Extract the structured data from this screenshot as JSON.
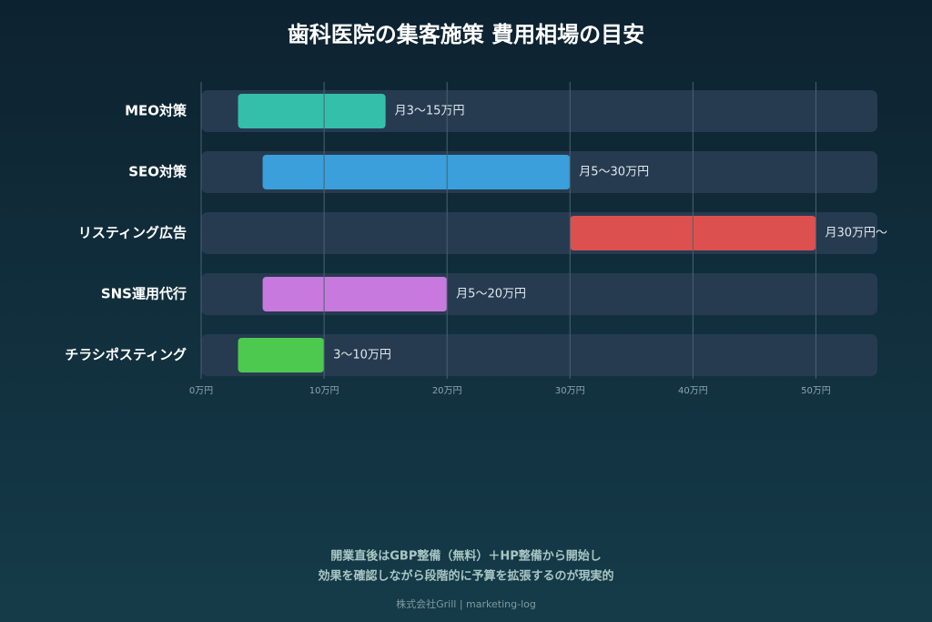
{
  "chart_data": {
    "type": "range-bar",
    "title": "歯科医院の集客施策 費用相場の目安",
    "categories": [
      "MEO対策",
      "SEO対策",
      "リスティング広告",
      "SNS運用代行",
      "チラシポスティング"
    ],
    "starts": [
      3,
      5,
      30,
      5,
      3
    ],
    "ends": [
      15,
      30,
      50,
      20,
      10
    ],
    "value_labels": [
      "月3〜15万円",
      "月5〜30万円",
      "月30万円〜",
      "月5〜20万円",
      "3〜10万円"
    ],
    "colors": [
      "#34bfaa",
      "#3b9fdc",
      "#dd5050",
      "#c879de",
      "#4ec94f"
    ],
    "xlim": [
      0,
      55
    ],
    "xticks": [
      {
        "value": 0,
        "label": "0万円"
      },
      {
        "value": 10,
        "label": "10万円"
      },
      {
        "value": 20,
        "label": "20万円"
      },
      {
        "value": 30,
        "label": "30万円"
      },
      {
        "value": 40,
        "label": "40万円"
      },
      {
        "value": 50,
        "label": "50万円"
      }
    ],
    "grid": true,
    "notes": [
      "開業直後はGBP整備（無料）＋HP整備から開始し",
      "効果を確認しながら段階的に予算を拡張するのが現実的"
    ],
    "source": "株式会社Grill | marketing-log"
  }
}
